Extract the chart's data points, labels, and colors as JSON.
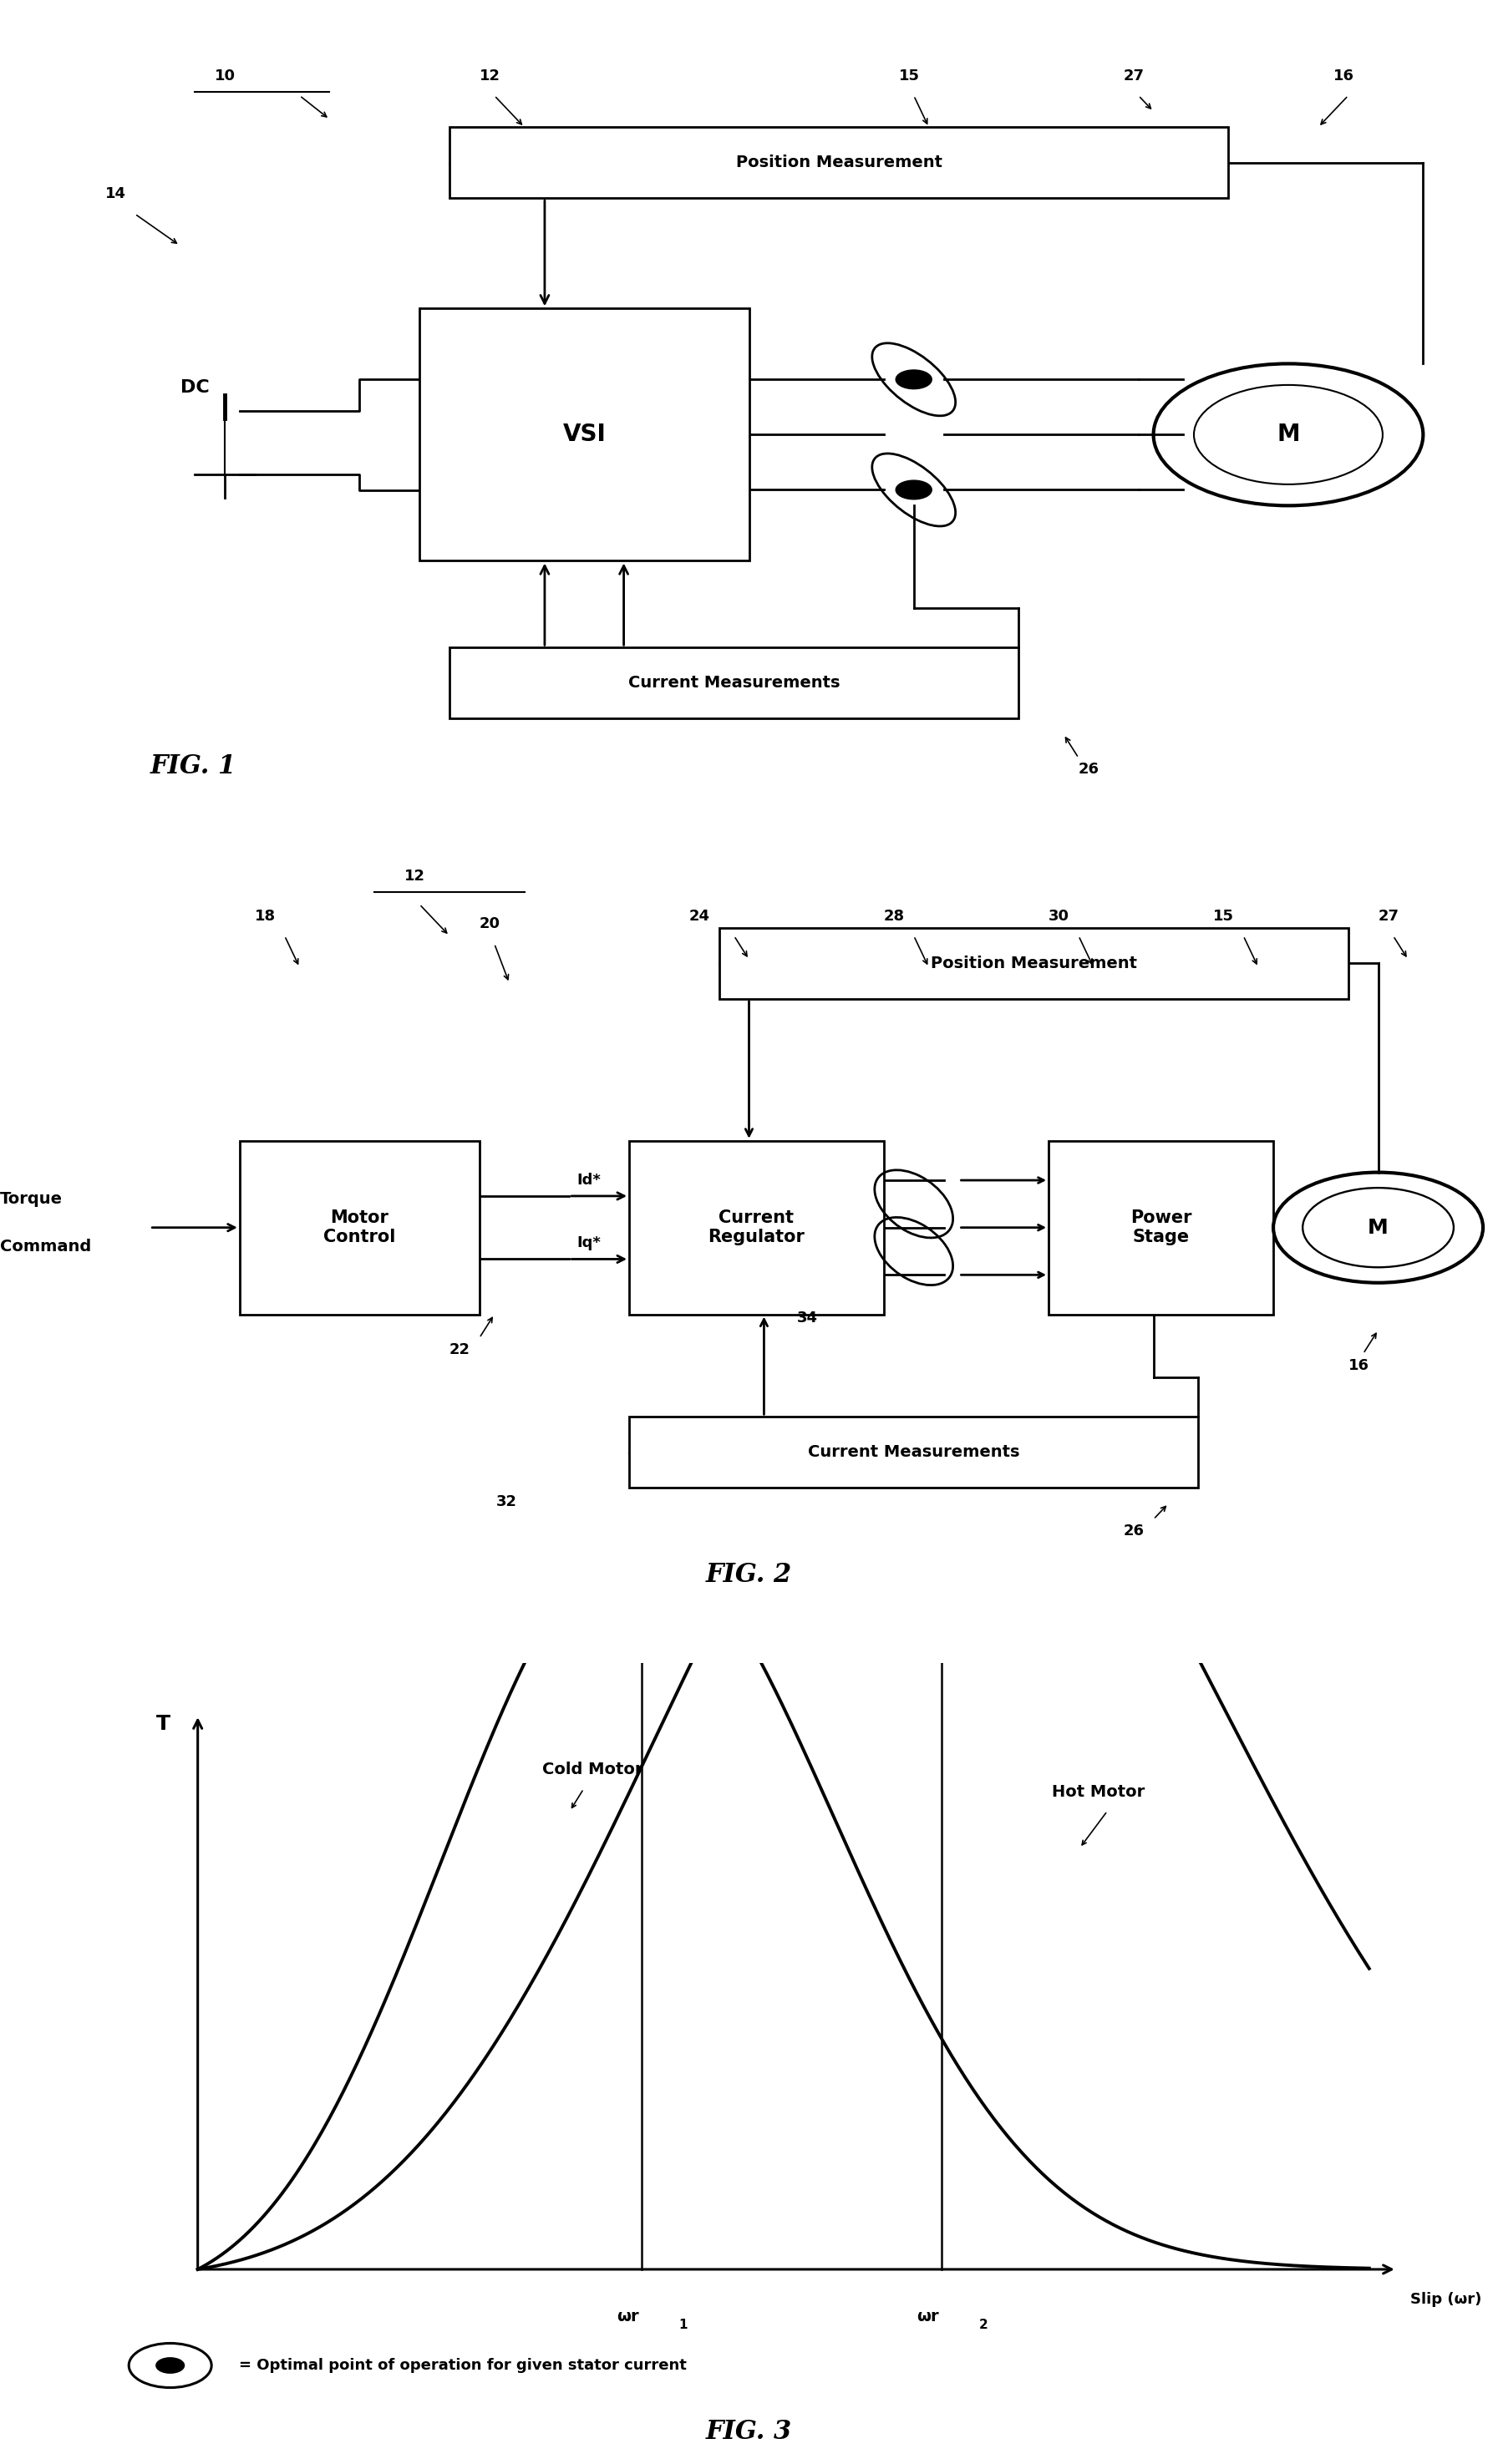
{
  "bg_color": "#ffffff",
  "fig_width": 17.93,
  "fig_height": 29.5,
  "lw": 2.0,
  "fs_main": 14,
  "fs_label": 13,
  "fs_ref": 12,
  "fs_fig": 22,
  "fig1": {
    "title_ref": "10",
    "vsi_label": "VSI",
    "dc_label": "DC",
    "motor_label": "M",
    "pos_meas_label": "Position Measurement",
    "curr_meas_label": "Current Measurements",
    "refs": [
      "10",
      "12",
      "14",
      "15",
      "16",
      "26",
      "27"
    ]
  },
  "fig2": {
    "title_ref": "12",
    "blocks": [
      "Motor\nControl",
      "Current\nRegulator",
      "Power\nStage"
    ],
    "input_label": "Torque\nCommand",
    "motor_label": "M",
    "pos_meas_label": "Position Measurement",
    "curr_meas_label": "Current Measurements",
    "id_label": "Id*",
    "iq_label": "Iq*",
    "refs": [
      "12",
      "15",
      "16",
      "18",
      "20",
      "22",
      "24",
      "26",
      "27",
      "28",
      "30"
    ]
  },
  "fig3": {
    "ylabel": "T",
    "xlabel": "Slip (ωr)",
    "cold_label": "Cold Motor",
    "hot_label": "Hot Motor",
    "wr1_label": "ωr",
    "wr2_label": "ωr",
    "sub1": "1",
    "sub2": "2",
    "opt_label": "= Optimal point of operation for given stator current",
    "ref32": "32",
    "ref34": "34"
  },
  "fig_labels": [
    "FIG. 1",
    "FIG. 2",
    "FIG. 3"
  ]
}
